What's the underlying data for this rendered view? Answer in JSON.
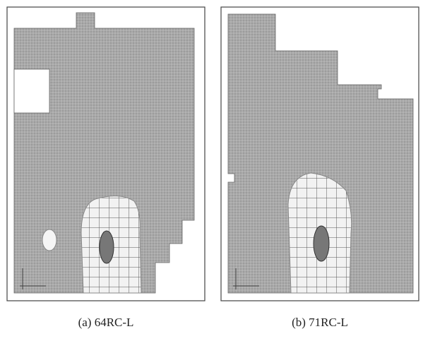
{
  "panels": [
    {
      "caption": "(a) 64RC-L"
    },
    {
      "caption": "(b) 71RC-L"
    }
  ]
}
